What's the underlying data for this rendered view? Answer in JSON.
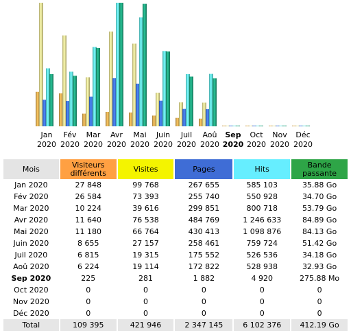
{
  "colors": {
    "visitors": "#d6a24e",
    "visits": "#e8de8e",
    "pages": "#3d6fd8",
    "hits": "#5ee0e0",
    "bandwidth": "#1f9e7a"
  },
  "table": {
    "headers": {
      "month": "Mois",
      "visitors": "Visiteurs différents",
      "visits": "Visites",
      "pages": "Pages",
      "hits": "Hits",
      "bandwidth": "Bande passante"
    },
    "rows": [
      {
        "month": "Jan 2020",
        "visitors": "27 848",
        "visits": "99 768",
        "pages": "267 655",
        "hits": "585 103",
        "bandwidth": "35.88 Go"
      },
      {
        "month": "Fév 2020",
        "visitors": "26 584",
        "visits": "73 393",
        "pages": "255 740",
        "hits": "550 928",
        "bandwidth": "34.70 Go"
      },
      {
        "month": "Mar 2020",
        "visitors": "10 224",
        "visits": "39 616",
        "pages": "299 851",
        "hits": "800 718",
        "bandwidth": "53.79 Go"
      },
      {
        "month": "Avr 2020",
        "visitors": "11 640",
        "visits": "76 538",
        "pages": "484 769",
        "hits": "1 246 633",
        "bandwidth": "84.89 Go"
      },
      {
        "month": "Mai 2020",
        "visitors": "11 180",
        "visits": "66 764",
        "pages": "430 413",
        "hits": "1 098 876",
        "bandwidth": "84.13 Go"
      },
      {
        "month": "Juin 2020",
        "visitors": "8 655",
        "visits": "27 157",
        "pages": "258 461",
        "hits": "759 724",
        "bandwidth": "51.42 Go"
      },
      {
        "month": "Juil 2020",
        "visitors": "6 815",
        "visits": "19 315",
        "pages": "175 552",
        "hits": "526 536",
        "bandwidth": "34.18 Go"
      },
      {
        "month": "Aoû 2020",
        "visitors": "6 224",
        "visits": "19 114",
        "pages": "172 822",
        "hits": "528 938",
        "bandwidth": "32.93 Go"
      },
      {
        "month": "Sep 2020",
        "visitors": "225",
        "visits": "281",
        "pages": "1 882",
        "hits": "4 920",
        "bandwidth": "275.88 Mo",
        "current": true
      },
      {
        "month": "Oct 2020",
        "visitors": "0",
        "visits": "0",
        "pages": "0",
        "hits": "0",
        "bandwidth": "0"
      },
      {
        "month": "Nov 2020",
        "visitors": "0",
        "visits": "0",
        "pages": "0",
        "hits": "0",
        "bandwidth": "0"
      },
      {
        "month": "Déc 2020",
        "visitors": "0",
        "visits": "0",
        "pages": "0",
        "hits": "0",
        "bandwidth": "0"
      }
    ],
    "total": {
      "month": "Total",
      "visitors": "109 395",
      "visits": "421 946",
      "pages": "2 347 145",
      "hits": "6 102 376",
      "bandwidth": "412.19 Go"
    }
  },
  "chart_data": {
    "type": "bar",
    "categories": [
      [
        "Jan",
        "2020"
      ],
      [
        "Fév",
        "2020"
      ],
      [
        "Mar",
        "2020"
      ],
      [
        "Avr",
        "2020"
      ],
      [
        "Mai",
        "2020"
      ],
      [
        "Juin",
        "2020"
      ],
      [
        "Juil",
        "2020"
      ],
      [
        "Aoû",
        "2020"
      ],
      [
        "Sep",
        "2020"
      ],
      [
        "Oct",
        "2020"
      ],
      [
        "Nov",
        "2020"
      ],
      [
        "Déc",
        "2020"
      ]
    ],
    "current_index": 8,
    "series": [
      {
        "key": "visitors",
        "values": [
          27848,
          26584,
          10224,
          11640,
          11180,
          8655,
          6815,
          6224,
          225,
          0,
          0,
          0
        ]
      },
      {
        "key": "visits",
        "values": [
          99768,
          73393,
          39616,
          76538,
          66764,
          27157,
          19315,
          19114,
          281,
          0,
          0,
          0
        ]
      },
      {
        "key": "pages",
        "values": [
          267655,
          255740,
          299851,
          484769,
          430413,
          258461,
          175552,
          172822,
          1882,
          0,
          0,
          0
        ]
      },
      {
        "key": "hits",
        "values": [
          585103,
          550928,
          800718,
          1246633,
          1098876,
          759724,
          526536,
          528938,
          4920,
          0,
          0,
          0
        ]
      },
      {
        "key": "bandwidth",
        "unit": "Go",
        "values": [
          35.88,
          34.7,
          53.79,
          84.89,
          84.13,
          51.42,
          34.18,
          32.93,
          0.27588,
          0,
          0,
          0
        ]
      }
    ],
    "scale_groups": [
      [
        "visitors",
        "visits"
      ],
      [
        "pages",
        "hits"
      ],
      [
        "bandwidth"
      ]
    ]
  }
}
